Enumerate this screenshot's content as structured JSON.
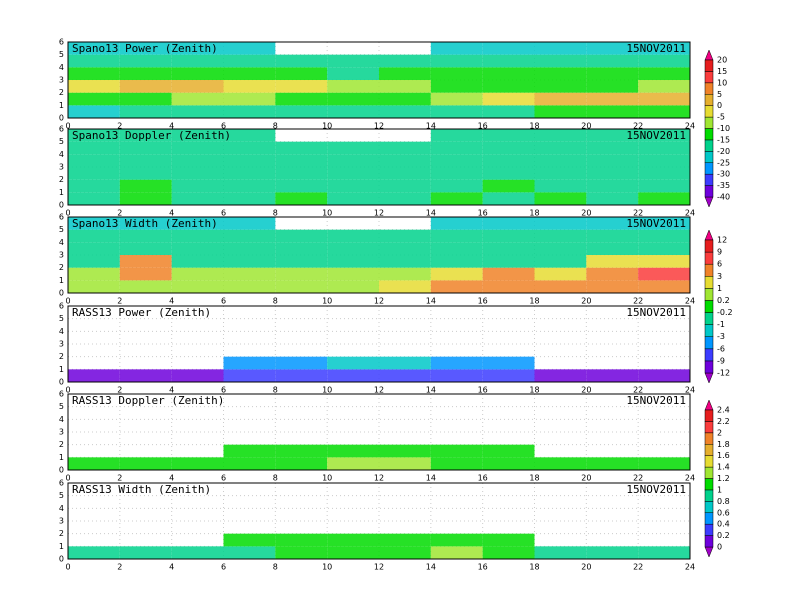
{
  "chart_data": [
    {
      "type": "heatmap",
      "title": "Spano13 Power (Zenith)",
      "date": "15NOV2011",
      "colorbar": 6,
      "x": [
        1,
        3,
        5,
        7,
        9,
        11,
        13,
        15,
        17,
        19,
        21,
        23
      ],
      "y": [
        0.5,
        1.5,
        2.5,
        3.5,
        4.5,
        5.5
      ],
      "xlim": [
        0,
        24
      ],
      "xticks": [
        0,
        2,
        4,
        6,
        8,
        10,
        12,
        14,
        16,
        18,
        20,
        22,
        24
      ],
      "ylim": [
        0,
        6
      ],
      "yticks": [
        0,
        1,
        2,
        3,
        4,
        5,
        6
      ],
      "z": [
        [
          -25,
          -20,
          -20,
          -20,
          -20,
          -20,
          -20,
          -20,
          -20,
          -15,
          -15,
          -15
        ],
        [
          -15,
          -15,
          -10,
          -10,
          -15,
          -15,
          -15,
          -10,
          -5,
          0,
          0,
          0
        ],
        [
          -5,
          0,
          0,
          -5,
          -5,
          -10,
          -10,
          -15,
          -15,
          -15,
          -15,
          -10
        ],
        [
          -15,
          -15,
          -15,
          -15,
          -15,
          -20,
          -15,
          -15,
          -15,
          -15,
          -15,
          -15
        ],
        [
          -20,
          -20,
          -20,
          -20,
          -20,
          -20,
          -20,
          -20,
          -20,
          -20,
          -20,
          -20
        ],
        [
          -25,
          -25,
          -25,
          -25,
          null,
          null,
          null,
          -25,
          -25,
          -25,
          -25,
          -25
        ]
      ]
    },
    {
      "type": "heatmap",
      "title": "Spano13 Doppler (Zenith)",
      "date": "15NOV2011",
      "colorbar": 6,
      "x": [
        1,
        3,
        5,
        7,
        9,
        11,
        13,
        15,
        17,
        19,
        21,
        23
      ],
      "y": [
        0.5,
        1.5,
        2.5,
        3.5,
        4.5,
        5.5
      ],
      "xlim": [
        0,
        24
      ],
      "xticks": [
        0,
        2,
        4,
        6,
        8,
        10,
        12,
        14,
        16,
        18,
        20,
        22,
        24
      ],
      "ylim": [
        0,
        6
      ],
      "yticks": [
        0,
        1,
        2,
        3,
        4,
        5,
        6
      ],
      "z": [
        [
          -17,
          -15,
          -17,
          -17,
          -15,
          -17,
          -17,
          -15,
          -17,
          -15,
          -17,
          -15
        ],
        [
          -17,
          -15,
          -17,
          -17,
          -17,
          -17,
          -17,
          -17,
          -15,
          -17,
          -17,
          -17
        ],
        [
          -17,
          -17,
          -17,
          -17,
          -17,
          -17,
          -17,
          -17,
          -17,
          -17,
          -17,
          -17
        ],
        [
          -17,
          -17,
          -17,
          -17,
          -17,
          -17,
          -17,
          -17,
          -17,
          -17,
          -17,
          -17
        ],
        [
          -17,
          -17,
          -17,
          -17,
          -17,
          -17,
          -17,
          -17,
          -17,
          -17,
          -17,
          -17
        ],
        [
          -17,
          -17,
          -17,
          -17,
          null,
          null,
          null,
          -17,
          -17,
          -17,
          -17,
          -17
        ]
      ]
    },
    {
      "type": "heatmap",
      "title": "Spano13 Width (Zenith)",
      "date": "15NOV2011",
      "colorbar": 7,
      "x": [
        1,
        3,
        5,
        7,
        9,
        11,
        13,
        15,
        17,
        19,
        21,
        23
      ],
      "y": [
        0.5,
        1.5,
        2.5,
        3.5,
        4.5,
        5.5
      ],
      "xlim": [
        0,
        24
      ],
      "xticks": [
        0,
        2,
        4,
        6,
        8,
        10,
        12,
        14,
        16,
        18,
        20,
        22,
        24
      ],
      "ylim": [
        0,
        6
      ],
      "yticks": [
        0,
        1,
        2,
        3,
        4,
        5,
        6
      ],
      "z": [
        [
          0.5,
          0.5,
          0.5,
          0.5,
          0.5,
          0.5,
          2,
          3,
          5,
          5,
          3,
          3
        ],
        [
          0.5,
          5,
          0.5,
          0.5,
          0.5,
          0.5,
          0.5,
          2,
          4,
          2,
          4,
          6
        ],
        [
          -0.5,
          5,
          -0.5,
          -0.5,
          -0.5,
          -0.5,
          -0.5,
          -0.5,
          -0.5,
          -0.5,
          2,
          2
        ],
        [
          -0.5,
          -0.5,
          -0.5,
          -0.5,
          -0.5,
          -0.5,
          -0.5,
          -0.5,
          -0.5,
          -0.5,
          -0.5,
          -0.5
        ],
        [
          -1,
          -1,
          -1,
          -1,
          -1,
          -1,
          -1,
          -1,
          -1,
          -1,
          -1,
          -1
        ],
        [
          -2,
          -2,
          -2,
          -2,
          null,
          null,
          null,
          -2,
          -2,
          -2,
          -2,
          -2
        ]
      ]
    },
    {
      "type": "heatmap",
      "title": "RASS13 Power (Zenith)",
      "date": "15NOV2011",
      "colorbar": 7,
      "x": [
        1,
        3,
        5,
        7,
        9,
        11,
        13,
        15,
        17,
        19,
        21,
        23
      ],
      "y": [
        0.5,
        1.5,
        2.5,
        3.5,
        4.5,
        5.5
      ],
      "xlim": [
        0,
        24
      ],
      "xticks": [
        0,
        2,
        4,
        6,
        8,
        10,
        12,
        14,
        16,
        18,
        20,
        22,
        24
      ],
      "ylim": [
        0,
        6
      ],
      "yticks": [
        0,
        1,
        2,
        3,
        4,
        5,
        6
      ],
      "z": [
        [
          -10,
          -10,
          -10,
          -7,
          -7,
          -7,
          -7,
          -7,
          -7,
          -10,
          -10,
          -10
        ],
        [
          null,
          null,
          null,
          -4,
          -4,
          -2,
          -2,
          -4,
          -4,
          null,
          null,
          null
        ],
        [
          null,
          null,
          null,
          null,
          null,
          null,
          null,
          null,
          null,
          null,
          null,
          null
        ],
        [
          null,
          null,
          null,
          null,
          null,
          null,
          null,
          null,
          null,
          null,
          null,
          null
        ],
        [
          null,
          null,
          null,
          null,
          null,
          null,
          null,
          null,
          null,
          null,
          null,
          null
        ],
        [
          null,
          null,
          null,
          null,
          null,
          null,
          null,
          null,
          null,
          null,
          null,
          null
        ]
      ]
    },
    {
      "type": "heatmap",
      "title": "RASS13 Doppler (Zenith)",
      "date": "15NOV2011",
      "colorbar": 8,
      "x": [
        1,
        3,
        5,
        7,
        9,
        11,
        13,
        15,
        17,
        19,
        21,
        23
      ],
      "y": [
        0.5,
        1.5,
        2.5,
        3.5,
        4.5,
        5.5
      ],
      "xlim": [
        0,
        24
      ],
      "xticks": [
        0,
        2,
        4,
        6,
        8,
        10,
        12,
        14,
        16,
        18,
        20,
        22,
        24
      ],
      "ylim": [
        0,
        6
      ],
      "yticks": [
        0,
        1,
        2,
        3,
        4,
        5,
        6
      ],
      "z": [
        [
          1.1,
          1.1,
          1.1,
          1.1,
          1.1,
          1.3,
          1.3,
          1.1,
          1.1,
          1.1,
          1.1,
          1.1
        ],
        [
          null,
          null,
          null,
          1.1,
          1.1,
          1.1,
          1.1,
          1.1,
          1.1,
          null,
          null,
          null
        ],
        [
          null,
          null,
          null,
          null,
          null,
          null,
          null,
          null,
          null,
          null,
          null,
          null
        ],
        [
          null,
          null,
          null,
          null,
          null,
          null,
          null,
          null,
          null,
          null,
          null,
          null
        ],
        [
          null,
          null,
          null,
          null,
          null,
          null,
          null,
          null,
          null,
          null,
          null,
          null
        ],
        [
          null,
          null,
          null,
          null,
          null,
          null,
          null,
          null,
          null,
          null,
          null,
          null
        ]
      ]
    },
    {
      "type": "heatmap",
      "title": "RASS13 Width (Zenith)",
      "date": "15NOV2011",
      "colorbar": 8,
      "x": [
        1,
        3,
        5,
        7,
        9,
        11,
        13,
        15,
        17,
        19,
        21,
        23
      ],
      "y": [
        0.5,
        1.5,
        2.5,
        3.5,
        4.5,
        5.5
      ],
      "xlim": [
        0,
        24
      ],
      "xticks": [
        0,
        2,
        4,
        6,
        8,
        10,
        12,
        14,
        16,
        18,
        20,
        22,
        24
      ],
      "ylim": [
        0,
        6
      ],
      "yticks": [
        0,
        1,
        2,
        3,
        4,
        5,
        6
      ],
      "z": [
        [
          0.9,
          0.9,
          0.9,
          0.9,
          1.1,
          1.1,
          1.1,
          1.3,
          1.1,
          0.9,
          0.9,
          0.9
        ],
        [
          null,
          null,
          null,
          1.1,
          1.1,
          1.1,
          1.1,
          1.1,
          1.1,
          null,
          null,
          null
        ],
        [
          null,
          null,
          null,
          null,
          null,
          null,
          null,
          null,
          null,
          null,
          null,
          null
        ],
        [
          null,
          null,
          null,
          null,
          null,
          null,
          null,
          null,
          null,
          null,
          null,
          null
        ],
        [
          null,
          null,
          null,
          null,
          null,
          null,
          null,
          null,
          null,
          null,
          null,
          null
        ],
        [
          null,
          null,
          null,
          null,
          null,
          null,
          null,
          null,
          null,
          null,
          null,
          null
        ]
      ]
    },
    {
      "type": "colorbar",
      "levels": [
        -40,
        -35,
        -30,
        -25,
        -20,
        -15,
        -10,
        -5,
        0,
        5,
        10,
        15,
        20
      ],
      "colors": [
        "#a000c8",
        "#6e00dc",
        "#3c3cff",
        "#0096ff",
        "#00c8c8",
        "#00d28c",
        "#00dc00",
        "#a0e632",
        "#e6dc32",
        "#e6af2d",
        "#f08228",
        "#fa3c3c",
        "#e61e1e",
        "#f00082"
      ]
    },
    {
      "type": "colorbar",
      "levels": [
        -12,
        -9,
        -6,
        -3,
        -1,
        -0.2,
        0.2,
        1,
        3,
        6,
        9,
        12
      ],
      "colors": [
        "#a000c8",
        "#6e00dc",
        "#3c3cff",
        "#0096ff",
        "#00c8c8",
        "#00d28c",
        "#00dc00",
        "#a0e632",
        "#e6dc32",
        "#f08228",
        "#fa3c3c",
        "#e61e1e",
        "#f00082"
      ]
    },
    {
      "type": "colorbar",
      "levels": [
        0,
        0.2,
        0.4,
        0.6,
        0.8,
        1,
        1.2,
        1.4,
        1.6,
        1.8,
        2,
        2.2,
        2.4
      ],
      "colors": [
        "#a000c8",
        "#6e00dc",
        "#3c3cff",
        "#0096ff",
        "#00c8c8",
        "#00d28c",
        "#00dc00",
        "#a0e632",
        "#e6dc32",
        "#e6af2d",
        "#f08228",
        "#fa3c3c",
        "#e61e1e",
        "#f00082"
      ]
    }
  ]
}
